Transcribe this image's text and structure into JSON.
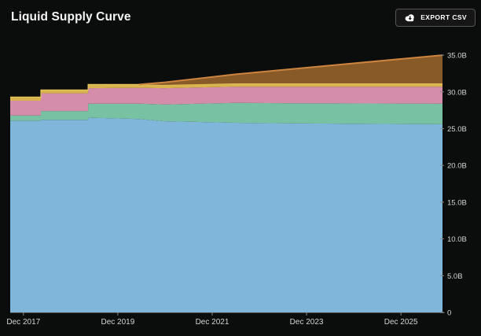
{
  "header": {
    "title": "Liquid Supply Curve",
    "export_button": {
      "label": "EXPORT CSV",
      "icon": "cloud-download-icon"
    }
  },
  "colors": {
    "background": "#0b0c0c",
    "title_text": "#f5f5f5",
    "axis_text": "#d4d4d4",
    "axis_line": "#4f4f4f",
    "tick_mark": "#8a8a8a",
    "button_background": "#161616",
    "button_border": "#555555",
    "button_text": "#ffffff"
  },
  "chart_data": {
    "type": "area",
    "stacked": true,
    "title": "Liquid Supply Curve",
    "xlabel": "",
    "ylabel": "",
    "units": "B",
    "grid": false,
    "legend": "none",
    "x_unit": "decimal_year",
    "xlim": [
      2017.72,
      2026.88
    ],
    "ylim": [
      0,
      36.4
    ],
    "x_ticks": [
      {
        "x": 2018.0,
        "label": "Dec 2017"
      },
      {
        "x": 2020.0,
        "label": "Dec 2019"
      },
      {
        "x": 2022.0,
        "label": "Dec 2021"
      },
      {
        "x": 2024.0,
        "label": "Dec 2023"
      },
      {
        "x": 2026.0,
        "label": "Dec 2025"
      }
    ],
    "y_ticks": [
      {
        "v": 0,
        "label": "0"
      },
      {
        "v": 5,
        "label": "5.0B"
      },
      {
        "v": 10,
        "label": "10.0B"
      },
      {
        "v": 15,
        "label": "15.0B"
      },
      {
        "v": 20,
        "label": "20.0B"
      },
      {
        "v": 25,
        "label": "25.0B"
      },
      {
        "v": 30,
        "label": "30.0B"
      },
      {
        "v": 35,
        "label": "35.0B"
      }
    ],
    "x": [
      2017.72,
      2018.37,
      2018.37,
      2019.37,
      2019.37,
      2020.45,
      2021.0,
      2022.5,
      2024.0,
      2026.88
    ],
    "series": [
      {
        "name": "layer-1-blue",
        "color": "#7fb6d9",
        "values": [
          26.1,
          26.1,
          26.2,
          26.2,
          26.5,
          26.3,
          26.0,
          25.8,
          25.7,
          25.6
        ]
      },
      {
        "name": "layer-2-teal",
        "color": "#79c1a3",
        "values": [
          0.7,
          0.7,
          1.2,
          1.2,
          1.9,
          2.1,
          2.3,
          2.7,
          2.75,
          2.8
        ]
      },
      {
        "name": "layer-3-pink",
        "color": "#d48eac",
        "values": [
          2.0,
          2.0,
          2.4,
          2.4,
          2.1,
          2.15,
          2.2,
          2.2,
          2.25,
          2.3
        ]
      },
      {
        "name": "layer-4-gold",
        "color": "#d9b44e",
        "stroke": "#ecc75f",
        "stroke_width": 1.2,
        "values": [
          0.5,
          0.5,
          0.45,
          0.45,
          0.5,
          0.45,
          0.45,
          0.45,
          0.45,
          0.45
        ]
      },
      {
        "name": "layer-5-brown",
        "color": "#875a28",
        "stroke": "#cc8440",
        "stroke_width": 2.0,
        "values": [
          0,
          0,
          0,
          0,
          0,
          0,
          0.35,
          1.25,
          2.15,
          3.85
        ]
      }
    ]
  }
}
